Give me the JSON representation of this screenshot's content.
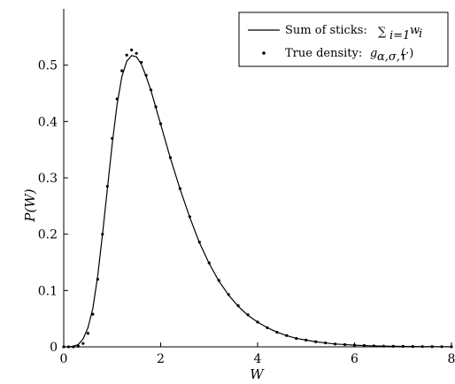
{
  "chart_data": {
    "type": "line",
    "title": "",
    "xlabel": "W",
    "ylabel": "P(W)",
    "xlim": [
      0,
      8
    ],
    "ylim": [
      0,
      0.6
    ],
    "xticks": [
      0,
      2,
      4,
      6,
      8
    ],
    "yticks": [
      0,
      0.1,
      0.2,
      0.3,
      0.4,
      0.5
    ],
    "grid": false,
    "legend_placement": "top-right",
    "legend": {
      "line_label": "Sum of sticks:",
      "line_math": "∑",
      "line_math_sub": "i=1",
      "line_math_tail": "w",
      "line_math_tail_sub": "i",
      "dot_label": "True density:",
      "dot_math": "g",
      "dot_math_sub": "α,σ,τ",
      "dot_math_tail": "(·)"
    },
    "series": [
      {
        "kind": "line",
        "x": [
          0,
          0.1,
          0.2,
          0.3,
          0.4,
          0.5,
          0.6,
          0.7,
          0.8,
          0.9,
          1.0,
          1.1,
          1.2,
          1.3,
          1.4,
          1.5,
          1.6,
          1.7,
          1.8,
          1.9,
          2.0,
          2.2,
          2.4,
          2.6,
          2.8,
          3.0,
          3.2,
          3.4,
          3.6,
          3.8,
          4.0,
          4.2,
          4.4,
          4.6,
          4.8,
          5.0,
          5.2,
          5.4,
          5.6,
          5.8,
          6.0,
          6.2,
          6.4,
          6.6,
          6.8,
          7.0,
          7.2,
          7.4,
          7.6,
          7.8,
          8.0
        ],
        "y": [
          0,
          0,
          0.001,
          0.004,
          0.014,
          0.034,
          0.068,
          0.125,
          0.2,
          0.28,
          0.36,
          0.43,
          0.48,
          0.507,
          0.517,
          0.515,
          0.502,
          0.48,
          0.455,
          0.425,
          0.395,
          0.335,
          0.28,
          0.23,
          0.185,
          0.148,
          0.117,
          0.092,
          0.072,
          0.056,
          0.044,
          0.034,
          0.026,
          0.02,
          0.015,
          0.012,
          0.009,
          0.007,
          0.005,
          0.004,
          0.003,
          0.0023,
          0.0017,
          0.0013,
          0.001,
          0.0008,
          0.0006,
          0.0005,
          0.0004,
          0.0003,
          0.0002
        ]
      },
      {
        "kind": "scatter",
        "x": [
          0,
          0.1,
          0.2,
          0.3,
          0.4,
          0.5,
          0.6,
          0.7,
          0.8,
          0.9,
          1.0,
          1.1,
          1.2,
          1.3,
          1.4,
          1.5,
          1.6,
          1.7,
          1.8,
          1.9,
          2.0,
          2.2,
          2.4,
          2.6,
          2.8,
          3.0,
          3.2,
          3.4,
          3.6,
          3.8,
          4.0,
          4.2,
          4.4,
          4.6,
          4.8,
          5.0,
          5.2,
          5.4,
          5.6,
          5.8,
          6.0,
          6.2,
          6.4,
          6.6,
          6.8,
          7.0,
          7.2,
          7.4,
          7.6,
          7.8,
          8.0
        ],
        "y": [
          0,
          0,
          0,
          0.001,
          0.006,
          0.024,
          0.058,
          0.12,
          0.2,
          0.285,
          0.37,
          0.44,
          0.49,
          0.518,
          0.527,
          0.521,
          0.505,
          0.482,
          0.456,
          0.426,
          0.396,
          0.336,
          0.281,
          0.231,
          0.186,
          0.149,
          0.118,
          0.093,
          0.073,
          0.057,
          0.044,
          0.034,
          0.026,
          0.02,
          0.015,
          0.012,
          0.009,
          0.007,
          0.005,
          0.004,
          0.003,
          0.0023,
          0.0017,
          0.0013,
          0.001,
          0.0008,
          0.0006,
          0.0005,
          0.0004,
          0.0003,
          0.0002
        ]
      }
    ]
  }
}
